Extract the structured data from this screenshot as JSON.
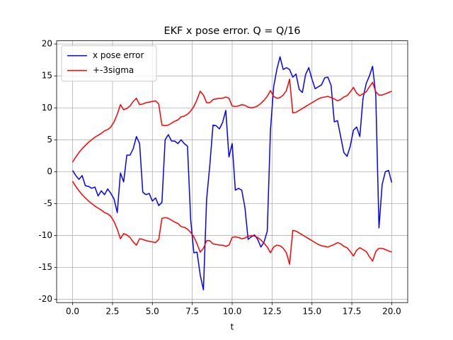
{
  "chart_data": {
    "type": "line",
    "title": "EKF x pose error. Q = Q/16",
    "xlabel": "t",
    "x": [
      0,
      0.2,
      0.4,
      0.6,
      0.8,
      1.0,
      1.2,
      1.4,
      1.6,
      1.8,
      2.0,
      2.2,
      2.4,
      2.6,
      2.8,
      3.0,
      3.2,
      3.4,
      3.6,
      3.8,
      4.0,
      4.2,
      4.4,
      4.6,
      4.8,
      5.0,
      5.2,
      5.4,
      5.6,
      5.8,
      6.0,
      6.2,
      6.4,
      6.6,
      6.8,
      7.0,
      7.2,
      7.4,
      7.6,
      7.8,
      8.0,
      8.2,
      8.4,
      8.6,
      8.8,
      9.0,
      9.2,
      9.4,
      9.6,
      9.8,
      10.0,
      10.2,
      10.4,
      10.6,
      10.8,
      11.0,
      11.2,
      11.4,
      11.6,
      11.8,
      12.0,
      12.2,
      12.4,
      12.6,
      12.8,
      13.0,
      13.2,
      13.4,
      13.6,
      13.8,
      14.0,
      14.2,
      14.4,
      14.6,
      14.8,
      15.0,
      15.2,
      15.4,
      15.6,
      15.8,
      16.0,
      16.2,
      16.4,
      16.6,
      16.8,
      17.0,
      17.2,
      17.4,
      17.6,
      17.8,
      18.0,
      18.2,
      18.4,
      18.6,
      18.8,
      19.0,
      19.2,
      19.4,
      19.6,
      19.8,
      20.0
    ],
    "series": [
      {
        "name": "x pose error",
        "color": "#0000ff",
        "values": [
          0.2,
          -0.6,
          -1.2,
          -0.6,
          -2.2,
          -2.3,
          -2.6,
          -2.4,
          -3.8,
          -3.0,
          -3.6,
          -2.7,
          -3.4,
          -4.3,
          -6.4,
          -0.2,
          -1.6,
          2.6,
          2.6,
          3.6,
          5.5,
          4.4,
          -3.2,
          -3.6,
          -3.4,
          -4.6,
          -4.1,
          -5.3,
          -4.8,
          5.0,
          5.8,
          4.8,
          4.8,
          4.4,
          5.0,
          4.4,
          4.0,
          -7.5,
          -12.7,
          -12.6,
          -16.2,
          -18.5,
          -4.3,
          1.0,
          7.3,
          7.2,
          6.7,
          7.7,
          9.6,
          2.3,
          4.4,
          -2.9,
          -2.6,
          -2.9,
          -5.6,
          -10.6,
          -10.2,
          -9.9,
          -10.6,
          -11.8,
          -11.0,
          -9.3,
          6.5,
          13.3,
          16.0,
          18.0,
          16.0,
          16.3,
          16.0,
          14.8,
          15.3,
          12.9,
          12.4,
          15.2,
          16.3,
          14.5,
          13.0,
          13.3,
          13.6,
          14.7,
          14.8,
          13.5,
          7.8,
          8.0,
          5.5,
          3.0,
          2.4,
          4.0,
          6.5,
          7.0,
          5.5,
          11.5,
          13.8,
          15.0,
          16.5,
          12.0,
          -8.8,
          -2.0,
          0,
          0.2,
          -1.7
        ]
      },
      {
        "name": "+-3sigma",
        "color": "#ff0000",
        "values": [
          1.5,
          2.3,
          3.0,
          3.6,
          4.1,
          4.6,
          5.0,
          5.4,
          5.7,
          6.0,
          6.4,
          6.6,
          7.0,
          7.8,
          9.0,
          10.5,
          9.7,
          9.9,
          10.3,
          11.0,
          11.5,
          10.5,
          10.6,
          10.8,
          10.9,
          11.0,
          11.1,
          10.6,
          7.3,
          7.2,
          7.3,
          7.6,
          7.9,
          8.1,
          8.6,
          8.7,
          9.0,
          9.5,
          10.2,
          11.3,
          12.6,
          12.0,
          10.8,
          10.8,
          11.3,
          11.4,
          11.5,
          11.5,
          11.7,
          11.5,
          10.3,
          10.2,
          10.3,
          10.5,
          10.4,
          10.1,
          10.0,
          10.1,
          10.3,
          10.7,
          11.2,
          11.8,
          12.7,
          11.8,
          11.5,
          11.6,
          12.0,
          12.7,
          14.5,
          9.2,
          9.3,
          9.6,
          9.9,
          10.2,
          10.5,
          10.8,
          11.1,
          11.4,
          11.6,
          11.7,
          11.8,
          11.6,
          11.4,
          11.1,
          11.3,
          11.7,
          11.9,
          12.5,
          13.2,
          12.3,
          11.9,
          12.2,
          12.5,
          13.3,
          14.0,
          12.5,
          12.0,
          12.0,
          12.2,
          12.4,
          12.6
        ]
      },
      {
        "color": "#ff0000",
        "values": [
          -1.5,
          -2.3,
          -3.0,
          -3.6,
          -4.1,
          -4.6,
          -5.0,
          -5.4,
          -5.7,
          -6.0,
          -6.4,
          -6.6,
          -7.0,
          -7.8,
          -9.0,
          -10.5,
          -9.7,
          -9.9,
          -10.3,
          -11.0,
          -11.5,
          -10.5,
          -10.6,
          -10.8,
          -10.9,
          -11.0,
          -11.1,
          -10.6,
          -7.3,
          -7.2,
          -7.3,
          -7.6,
          -7.9,
          -8.1,
          -8.6,
          -8.7,
          -9.0,
          -9.5,
          -10.2,
          -11.3,
          -12.6,
          -12.0,
          -10.8,
          -10.8,
          -11.3,
          -11.4,
          -11.5,
          -11.5,
          -11.7,
          -11.5,
          -10.3,
          -10.2,
          -10.3,
          -10.5,
          -10.4,
          -10.1,
          -10.0,
          -10.1,
          -10.3,
          -10.7,
          -11.2,
          -11.8,
          -12.7,
          -11.8,
          -11.5,
          -11.6,
          -12.0,
          -12.7,
          -14.5,
          -9.2,
          -9.3,
          -9.6,
          -9.9,
          -10.2,
          -10.5,
          -10.8,
          -11.1,
          -11.4,
          -11.6,
          -11.7,
          -11.8,
          -11.6,
          -11.4,
          -11.1,
          -11.3,
          -11.7,
          -11.9,
          -12.5,
          -13.2,
          -12.3,
          -11.9,
          -12.2,
          -12.5,
          -13.3,
          -14.0,
          -12.5,
          -12.0,
          -12.0,
          -12.2,
          -12.4,
          -12.6
        ]
      }
    ],
    "xlim": [
      -1,
      21
    ],
    "ylim": [
      -20.5,
      20.5
    ],
    "xticks": [
      {
        "value": 0,
        "label": "0.0"
      },
      2.5,
      {
        "value": 5,
        "label": "5.0"
      },
      7.5,
      {
        "value": 10,
        "label": "10.0"
      },
      12.5,
      {
        "value": 15,
        "label": "15.0"
      },
      17.5,
      {
        "value": 20,
        "label": "20.0"
      }
    ],
    "yticks": [
      -20,
      -15,
      -10,
      -5,
      0,
      5,
      10,
      15,
      20
    ],
    "grid": true,
    "legend": "upper left"
  }
}
